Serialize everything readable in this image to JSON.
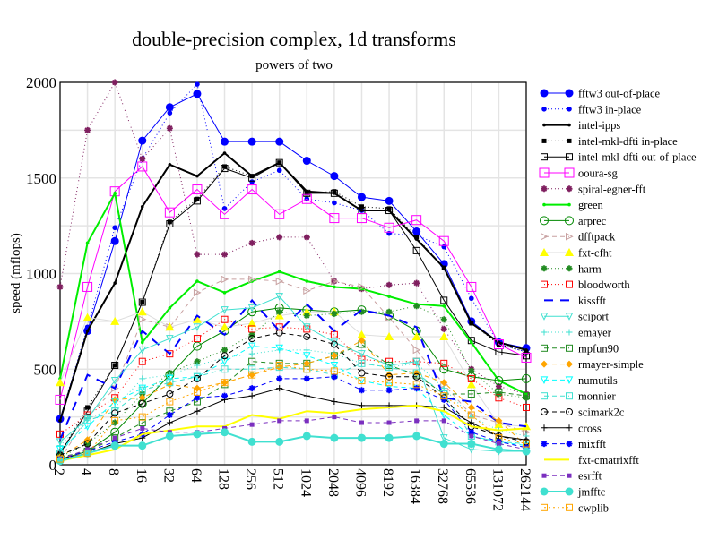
{
  "chart_data": {
    "type": "line",
    "title": "double-precision complex, 1d transforms",
    "subtitle": "powers of two",
    "xlabel": "",
    "ylabel": "speed (mflops)",
    "ylim": [
      0,
      2000
    ],
    "yticks": [
      "0",
      "500",
      "1000",
      "1500",
      "2000"
    ],
    "grid": true,
    "legend_position": "right",
    "categories": [
      "2",
      "4",
      "8",
      "16",
      "32",
      "64",
      "128",
      "256",
      "512",
      "1024",
      "2048",
      "4096",
      "8192",
      "16384",
      "32768",
      "65536",
      "131072",
      "262144"
    ],
    "series": [
      {
        "name": "fftw3 out-of-place",
        "color": "#0000ff",
        "dash": "",
        "marker": "circle-filled",
        "width": 1,
        "values": [
          240,
          700,
          1170,
          1695,
          1870,
          1940,
          1690,
          1690,
          1690,
          1590,
          1510,
          1400,
          1380,
          1220,
          1050,
          750,
          640,
          610
        ]
      },
      {
        "name": "fftw3 in-place",
        "color": "#0000ff",
        "dash": "1,3",
        "marker": "dot",
        "width": 1,
        "values": [
          240,
          720,
          1240,
          1600,
          1840,
          1990,
          1340,
          1480,
          1540,
          1390,
          1370,
          1330,
          1210,
          1200,
          1140,
          870,
          630,
          590
        ]
      },
      {
        "name": "intel-ipps",
        "color": "#000000",
        "dash": "",
        "marker": "small-dot",
        "width": 2,
        "values": [
          230,
          700,
          950,
          1350,
          1570,
          1510,
          1630,
          1510,
          1580,
          1430,
          1420,
          1330,
          1330,
          1180,
          1030,
          740,
          640,
          600
        ]
      },
      {
        "name": "intel-mkl-dfti in-place",
        "color": "#000000",
        "dash": "1,3",
        "marker": "square-filled",
        "width": 1,
        "values": [
          60,
          300,
          520,
          850,
          1270,
          1390,
          1560,
          1510,
          1580,
          1420,
          1430,
          1350,
          1340,
          1190,
          1030,
          740,
          630,
          590
        ]
      },
      {
        "name": "intel-mkl-dfti out-of-place",
        "color": "#000000",
        "dash": "",
        "marker": "square-open",
        "width": 1,
        "values": [
          60,
          280,
          520,
          850,
          1260,
          1380,
          1550,
          1500,
          1580,
          1420,
          1420,
          1330,
          1330,
          1120,
          860,
          650,
          590,
          570
        ]
      },
      {
        "name": "ooura-sg",
        "color": "#ff00ff",
        "dash": "",
        "marker": "square-open-large",
        "width": 1,
        "values": [
          340,
          930,
          1430,
          1560,
          1320,
          1440,
          1310,
          1440,
          1310,
          1390,
          1290,
          1290,
          1240,
          1280,
          1170,
          930,
          630,
          560
        ]
      },
      {
        "name": "spiral-egner-fft",
        "color": "#7f1f5f",
        "dash": "1,3",
        "marker": "star",
        "width": 1,
        "values": [
          930,
          1750,
          2000,
          1600,
          1760,
          1100,
          1100,
          1160,
          1190,
          1190,
          960,
          920,
          940,
          950,
          710,
          500,
          410,
          370
        ]
      },
      {
        "name": "green",
        "color": "#00ee00",
        "dash": "",
        "marker": "small-dot",
        "width": 2,
        "values": [
          450,
          1160,
          1420,
          640,
          820,
          960,
          900,
          960,
          1010,
          960,
          930,
          920,
          880,
          840,
          830,
          640,
          440,
          370
        ]
      },
      {
        "name": "arprec",
        "color": "#008800",
        "dash": "",
        "marker": "circle-open",
        "width": 1,
        "values": [
          30,
          70,
          170,
          320,
          470,
          620,
          700,
          800,
          820,
          810,
          800,
          810,
          780,
          700,
          500,
          460,
          440,
          450
        ]
      },
      {
        "name": "dfftpack",
        "color": "#c8a0a0",
        "dash": "5,4",
        "marker": "triangle-right",
        "width": 1,
        "values": [
          30,
          250,
          400,
          760,
          720,
          900,
          970,
          970,
          960,
          910,
          960,
          930,
          770,
          600,
          420,
          260,
          220,
          170
        ]
      },
      {
        "name": "fxt-cfht",
        "color": "#dddddd",
        "dash": "",
        "marker": "triangle-up-yellow",
        "width": 1,
        "values": [
          430,
          770,
          750,
          800,
          720,
          760,
          720,
          740,
          780,
          800,
          800,
          680,
          670,
          670,
          670,
          420,
          210,
          200
        ]
      },
      {
        "name": "harm",
        "color": "#228b22",
        "dash": "1,3",
        "marker": "star",
        "width": 1,
        "values": [
          40,
          110,
          220,
          370,
          480,
          540,
          600,
          680,
          800,
          780,
          790,
          800,
          800,
          830,
          760,
          490,
          370,
          350
        ]
      },
      {
        "name": "bloodworth",
        "color": "#ff0000",
        "dash": "1,3",
        "marker": "square-open",
        "width": 1,
        "values": [
          160,
          260,
          350,
          540,
          580,
          660,
          760,
          710,
          720,
          710,
          680,
          550,
          540,
          540,
          530,
          450,
          350,
          300
        ]
      },
      {
        "name": "kissfft",
        "color": "#0000ff",
        "dash": "10,8",
        "marker": "none",
        "width": 2,
        "values": [
          130,
          470,
          400,
          700,
          580,
          780,
          680,
          860,
          700,
          840,
          700,
          810,
          780,
          720,
          350,
          330,
          220,
          200
        ]
      },
      {
        "name": "sciport",
        "color": "#40e0d0",
        "dash": "",
        "marker": "triangle-down",
        "width": 1,
        "values": [
          120,
          240,
          440,
          600,
          660,
          720,
          810,
          820,
          880,
          720,
          640,
          580,
          520,
          540,
          140,
          80,
          70,
          70
        ]
      },
      {
        "name": "emayer",
        "color": "#40e0d0",
        "dash": "1,3",
        "marker": "plus",
        "width": 1,
        "values": [
          100,
          240,
          300,
          450,
          470,
          520,
          560,
          580,
          600,
          600,
          580,
          530,
          510,
          530,
          400,
          250,
          180,
          150
        ]
      },
      {
        "name": "mpfun90",
        "color": "#228b22",
        "dash": "5,4",
        "marker": "square-open",
        "width": 1,
        "values": [
          40,
          70,
          140,
          220,
          280,
          330,
          420,
          540,
          530,
          530,
          570,
          630,
          520,
          470,
          370,
          370,
          380,
          360
        ]
      },
      {
        "name": "rmayer-simple",
        "color": "#ffa500",
        "dash": "5,4",
        "marker": "diamond",
        "width": 1,
        "values": [
          40,
          130,
          340,
          350,
          420,
          400,
          430,
          470,
          510,
          530,
          570,
          650,
          470,
          480,
          430,
          300,
          230,
          100
        ]
      },
      {
        "name": "numutils",
        "color": "#00ffff",
        "dash": "5,4",
        "marker": "triangle-down",
        "width": 1,
        "values": [
          80,
          200,
          330,
          400,
          450,
          460,
          540,
          620,
          610,
          570,
          520,
          440,
          410,
          400,
          260,
          150,
          120,
          100
        ]
      },
      {
        "name": "monnier",
        "color": "#40e0d0",
        "dash": "5,4",
        "marker": "square-open",
        "width": 1,
        "values": [
          60,
          230,
          280,
          390,
          430,
          460,
          500,
          500,
          510,
          500,
          470,
          530,
          510,
          480,
          370,
          150,
          120,
          110
        ]
      },
      {
        "name": "scimark2c",
        "color": "#000000",
        "dash": "5,4",
        "marker": "circle-open-small",
        "width": 1,
        "values": [
          50,
          110,
          270,
          320,
          370,
          450,
          570,
          660,
          690,
          670,
          630,
          480,
          460,
          460,
          350,
          200,
          150,
          120
        ]
      },
      {
        "name": "cross",
        "color": "#000000",
        "dash": "",
        "marker": "plus",
        "width": 1,
        "values": [
          30,
          60,
          110,
          140,
          220,
          280,
          340,
          360,
          400,
          360,
          330,
          310,
          310,
          310,
          300,
          220,
          150,
          130
        ]
      },
      {
        "name": "mixfft",
        "color": "#0000ff",
        "dash": "5,4",
        "marker": "star",
        "width": 1,
        "values": [
          30,
          70,
          120,
          160,
          260,
          350,
          360,
          400,
          450,
          450,
          460,
          390,
          390,
          400,
          340,
          170,
          120,
          90
        ]
      },
      {
        "name": "fxt-cmatrixfft",
        "color": "#ffff00",
        "dash": "",
        "marker": "none",
        "width": 2,
        "values": [
          20,
          50,
          80,
          160,
          180,
          200,
          200,
          260,
          240,
          280,
          270,
          290,
          300,
          310,
          280,
          200,
          180,
          190
        ]
      },
      {
        "name": "esrfft",
        "color": "#7b2fbf",
        "dash": "5,4",
        "marker": "square-filled",
        "width": 1,
        "values": [
          30,
          80,
          140,
          190,
          170,
          170,
          190,
          210,
          230,
          230,
          250,
          220,
          220,
          230,
          230,
          150,
          110,
          80
        ]
      },
      {
        "name": "jmfftc",
        "color": "#40e0d0",
        "dash": "",
        "marker": "circle-filled",
        "width": 2,
        "values": [
          20,
          60,
          100,
          100,
          150,
          160,
          170,
          120,
          120,
          150,
          140,
          140,
          140,
          150,
          110,
          110,
          80,
          70
        ]
      },
      {
        "name": "cwplib",
        "color": "#ffa500",
        "dash": "2,3",
        "marker": "square-open",
        "width": 1,
        "values": [
          30,
          60,
          230,
          250,
          330,
          380,
          430,
          470,
          520,
          500,
          490,
          440,
          430,
          420,
          360,
          260,
          140,
          110
        ]
      }
    ]
  }
}
